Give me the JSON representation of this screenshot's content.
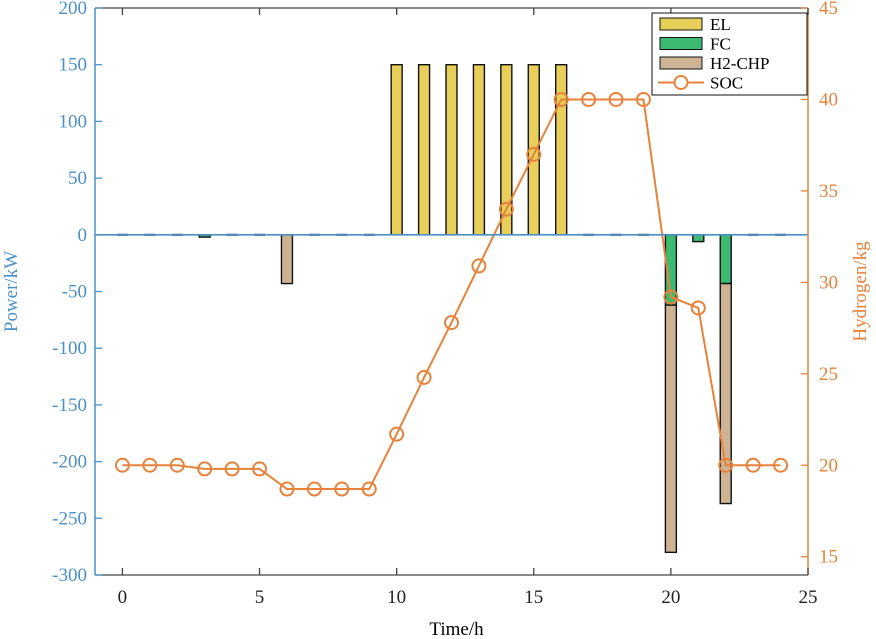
{
  "chart_data": {
    "type": "bar",
    "xlabel": "Time/h",
    "ylabel_left": "Power/kW",
    "ylabel_right": "Hydrogen/kg",
    "xlim": [
      -1,
      25
    ],
    "ylim_left": [
      -300,
      200
    ],
    "ylim_right": [
      14,
      45
    ],
    "xticks": [
      0,
      5,
      10,
      15,
      20,
      25
    ],
    "yticks_left": [
      200,
      150,
      100,
      50,
      0,
      -50,
      -100,
      -150,
      -200,
      -250,
      -300
    ],
    "yticks_right": [
      45,
      40,
      35,
      30,
      25,
      20,
      15
    ],
    "x": [
      0,
      1,
      2,
      3,
      4,
      5,
      6,
      7,
      8,
      9,
      10,
      11,
      12,
      13,
      14,
      15,
      16,
      17,
      18,
      19,
      20,
      21,
      22,
      23,
      24
    ],
    "series": [
      {
        "name": "EL",
        "kind": "bar",
        "axis": "left",
        "color": "#e8cf5a",
        "values": [
          0,
          0,
          0,
          0,
          0,
          0,
          0,
          0,
          0,
          0,
          150,
          150,
          150,
          150,
          150,
          150,
          150,
          0,
          0,
          0,
          0,
          0,
          0,
          0,
          0
        ]
      },
      {
        "name": "FC",
        "kind": "bar",
        "axis": "left",
        "color": "#3dba72",
        "values": [
          0,
          0,
          0,
          -2,
          0,
          0,
          0,
          0,
          0,
          0,
          0,
          0,
          0,
          0,
          0,
          0,
          0,
          0,
          0,
          0,
          -62,
          -6,
          -43,
          0,
          0
        ]
      },
      {
        "name": "H2-CHP",
        "kind": "bar",
        "axis": "left",
        "color": "#cdb393",
        "values": [
          0,
          0,
          0,
          0,
          0,
          0,
          -43,
          0,
          0,
          0,
          0,
          0,
          0,
          0,
          0,
          0,
          0,
          0,
          0,
          0,
          -218,
          0,
          -194,
          0,
          0
        ]
      },
      {
        "name": "SOC",
        "kind": "line",
        "axis": "right",
        "color": "#e8823a",
        "values": [
          20,
          20,
          20,
          19.8,
          19.8,
          19.8,
          18.7,
          18.7,
          18.7,
          18.7,
          21.7,
          24.8,
          27.8,
          30.9,
          34,
          37,
          40,
          40,
          40,
          40,
          29.2,
          28.6,
          20,
          20,
          20
        ]
      }
    ],
    "legend_position": "top-right",
    "colors": {
      "left_axis": "#4a90c8",
      "right_axis": "#e8823a",
      "bar_edge": "#111111"
    }
  }
}
